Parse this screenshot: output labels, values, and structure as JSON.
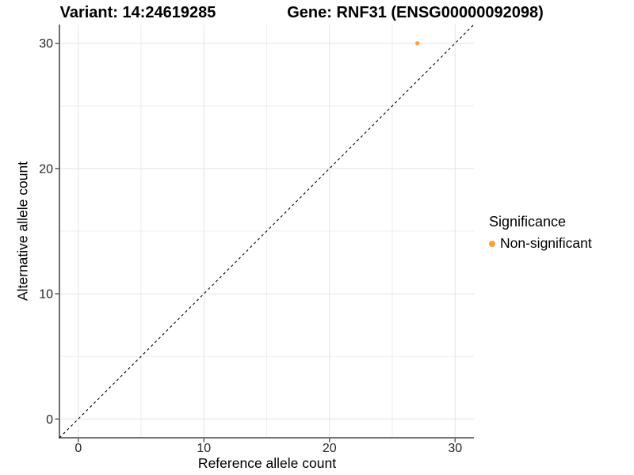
{
  "titles": {
    "variant": "Variant: 14:24619285",
    "gene": "Gene: RNF31 (ENSG00000092098)"
  },
  "legend": {
    "title": "Significance",
    "items": [
      {
        "label": "Non-significant",
        "color": "#F9A13C"
      }
    ]
  },
  "colors": {
    "point": "#F9A13C",
    "axis_line": "#4a4a4a",
    "tick_mark": "#333333",
    "tick_label": "#262626",
    "grid_major": "#e3e3e3",
    "grid_minor": "#eeeeee",
    "identity_line": "#000000",
    "background": "#ffffff"
  },
  "chart_data": {
    "type": "scatter",
    "title_left": "Variant: 14:24619285",
    "title_right": "Gene: RNF31 (ENSG00000092098)",
    "xlabel": "Reference allele count",
    "ylabel": "Alternative allele count",
    "x_ticks": [
      0,
      10,
      20,
      30
    ],
    "y_ticks": [
      0,
      10,
      20,
      30
    ],
    "x_minor_ticks": [
      5,
      15,
      25
    ],
    "y_minor_ticks": [
      5,
      15,
      25
    ],
    "xlim": [
      -1.5,
      31.5
    ],
    "ylim": [
      -1.5,
      31.5
    ],
    "grid": true,
    "legend_position": "right",
    "identity_line": {
      "type": "abline",
      "slope": 1,
      "intercept": 0,
      "style": "dashed"
    },
    "series": [
      {
        "name": "Non-significant",
        "color": "#F9A13C",
        "points": [
          {
            "x": 27,
            "y": 30
          }
        ]
      }
    ]
  }
}
